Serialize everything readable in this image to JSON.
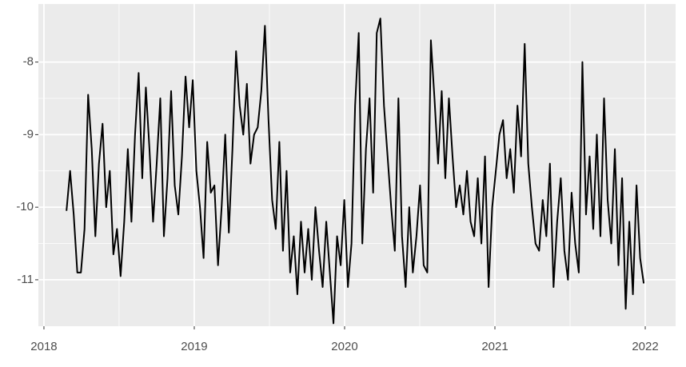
{
  "chart_data": {
    "type": "line",
    "color": "#000000",
    "grid": true,
    "x": [
      2018.15,
      2018.174,
      2018.198,
      2018.222,
      2018.246,
      2018.27,
      2018.294,
      2018.318,
      2018.342,
      2018.366,
      2018.39,
      2018.414,
      2018.438,
      2018.462,
      2018.486,
      2018.51,
      2018.534,
      2018.558,
      2018.582,
      2018.606,
      2018.63,
      2018.654,
      2018.678,
      2018.702,
      2018.726,
      2018.75,
      2018.774,
      2018.798,
      2018.822,
      2018.846,
      2018.87,
      2018.894,
      2018.918,
      2018.942,
      2018.966,
      2018.99,
      2019.014,
      2019.038,
      2019.062,
      2019.086,
      2019.11,
      2019.134,
      2019.158,
      2019.182,
      2019.206,
      2019.23,
      2019.254,
      2019.278,
      2019.302,
      2019.326,
      2019.35,
      2019.374,
      2019.398,
      2019.422,
      2019.446,
      2019.47,
      2019.494,
      2019.518,
      2019.542,
      2019.566,
      2019.59,
      2019.614,
      2019.638,
      2019.662,
      2019.686,
      2019.71,
      2019.734,
      2019.758,
      2019.782,
      2019.806,
      2019.83,
      2019.854,
      2019.878,
      2019.902,
      2019.926,
      2019.95,
      2019.974,
      2019.998,
      2020.022,
      2020.046,
      2020.07,
      2020.094,
      2020.118,
      2020.142,
      2020.166,
      2020.19,
      2020.214,
      2020.238,
      2020.262,
      2020.286,
      2020.31,
      2020.334,
      2020.358,
      2020.382,
      2020.406,
      2020.43,
      2020.454,
      2020.478,
      2020.502,
      2020.526,
      2020.55,
      2020.574,
      2020.598,
      2020.622,
      2020.646,
      2020.67,
      2020.694,
      2020.718,
      2020.742,
      2020.766,
      2020.79,
      2020.814,
      2020.838,
      2020.862,
      2020.886,
      2020.91,
      2020.934,
      2020.958,
      2020.982,
      2021.006,
      2021.03,
      2021.054,
      2021.078,
      2021.102,
      2021.126,
      2021.15,
      2021.174,
      2021.198,
      2021.222,
      2021.246,
      2021.27,
      2021.294,
      2021.318,
      2021.342,
      2021.366,
      2021.39,
      2021.414,
      2021.438,
      2021.462,
      2021.486,
      2021.51,
      2021.534,
      2021.558,
      2021.582,
      2021.606,
      2021.63,
      2021.654,
      2021.678,
      2021.702,
      2021.726,
      2021.75,
      2021.774,
      2021.798,
      2021.822,
      2021.846,
      2021.87,
      2021.894,
      2021.918,
      2021.942,
      2021.966,
      2021.99
    ],
    "values": [
      -10.05,
      -9.5,
      -10.1,
      -10.9,
      -10.9,
      -10.3,
      -8.45,
      -9.2,
      -10.4,
      -9.4,
      -8.85,
      -10.0,
      -9.5,
      -10.65,
      -10.3,
      -10.95,
      -10.2,
      -9.2,
      -10.2,
      -9.0,
      -8.15,
      -9.6,
      -8.35,
      -9.2,
      -10.2,
      -9.4,
      -8.5,
      -10.4,
      -9.6,
      -8.4,
      -9.7,
      -10.1,
      -9.3,
      -8.2,
      -8.9,
      -8.25,
      -9.5,
      -10.0,
      -10.7,
      -9.1,
      -9.8,
      -9.7,
      -10.8,
      -10.0,
      -9.0,
      -10.35,
      -9.2,
      -7.85,
      -8.6,
      -9.0,
      -8.3,
      -9.4,
      -9.0,
      -8.9,
      -8.4,
      -7.5,
      -8.8,
      -9.9,
      -10.3,
      -9.1,
      -10.6,
      -9.5,
      -10.9,
      -10.4,
      -11.2,
      -10.2,
      -10.9,
      -10.3,
      -11.0,
      -10.0,
      -10.6,
      -11.1,
      -10.2,
      -10.9,
      -11.6,
      -10.4,
      -10.8,
      -9.9,
      -11.1,
      -10.5,
      -8.6,
      -7.6,
      -10.5,
      -9.2,
      -8.5,
      -9.8,
      -7.6,
      -7.4,
      -8.6,
      -9.3,
      -10.0,
      -10.6,
      -8.5,
      -10.4,
      -11.1,
      -10.0,
      -10.9,
      -10.4,
      -9.7,
      -10.8,
      -10.9,
      -7.7,
      -8.5,
      -9.4,
      -8.4,
      -9.6,
      -8.5,
      -9.3,
      -10.0,
      -9.7,
      -10.1,
      -9.5,
      -10.2,
      -10.4,
      -9.6,
      -10.5,
      -9.3,
      -11.1,
      -10.0,
      -9.5,
      -9.0,
      -8.8,
      -9.6,
      -9.2,
      -9.8,
      -8.6,
      -9.3,
      -7.75,
      -9.4,
      -10.0,
      -10.5,
      -10.6,
      -9.9,
      -10.4,
      -9.4,
      -11.1,
      -10.2,
      -9.6,
      -10.6,
      -11.0,
      -9.8,
      -10.5,
      -10.9,
      -8.0,
      -10.1,
      -9.3,
      -10.3,
      -9.0,
      -10.4,
      -8.5,
      -9.9,
      -10.5,
      -9.2,
      -10.8,
      -9.6,
      -11.4,
      -10.2,
      -11.2,
      -9.7,
      -10.7,
      -11.05
    ],
    "xlim": [
      2017.963,
      2022.202
    ],
    "xticks": [
      2018,
      2019,
      2020,
      2021,
      2022
    ],
    "ylim": [
      -11.64,
      -7.2
    ],
    "yticks": [
      -11,
      -10,
      -9,
      -8
    ]
  }
}
